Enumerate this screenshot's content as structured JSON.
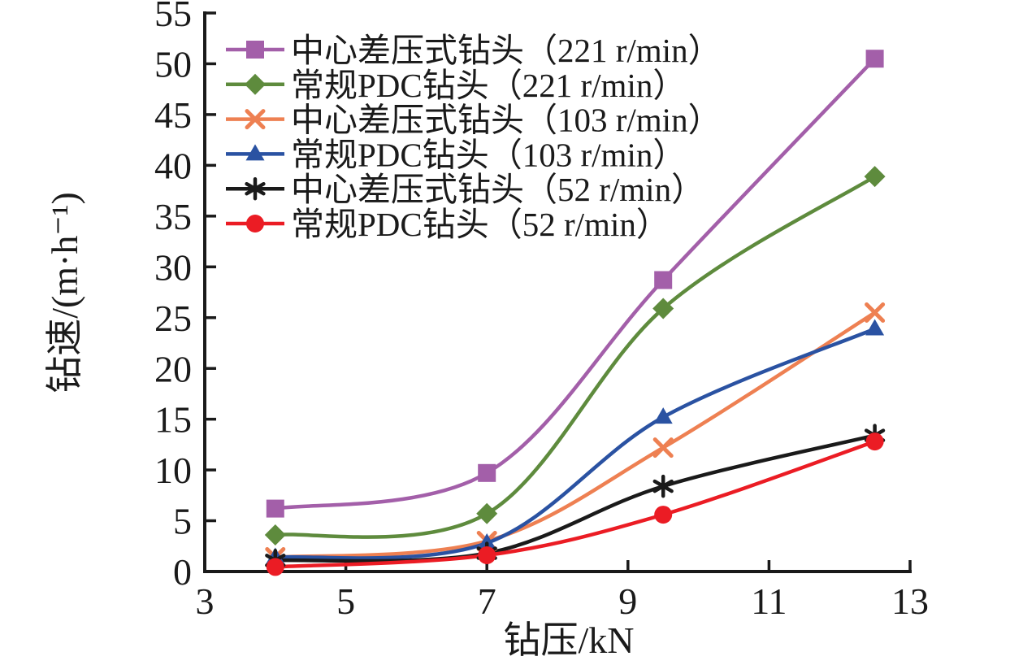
{
  "figure": {
    "background": "#ffffff",
    "text_color": "#1a1a1a"
  },
  "chart_data": {
    "type": "line",
    "xlabel": "钻压/kN",
    "ylabel": "钻速/(m·h⁻¹)",
    "xlim": [
      3,
      13
    ],
    "ylim": [
      0,
      55
    ],
    "x_ticks": [
      3,
      5,
      7,
      9,
      11,
      13
    ],
    "y_ticks": [
      0,
      5,
      10,
      15,
      20,
      25,
      30,
      35,
      40,
      45,
      50,
      55
    ],
    "grid": false,
    "legend_position": "upper-left",
    "x": [
      4,
      7,
      9.5,
      12.5
    ],
    "series": [
      {
        "name": "中心差压式钻头（221 r/min）",
        "marker": "square",
        "color": "#A35FA9",
        "values": [
          6.2,
          9.7,
          28.7,
          50.5
        ]
      },
      {
        "name": "常规PDC钻头（221 r/min）",
        "marker": "diamond",
        "color": "#5E8B3D",
        "values": [
          3.6,
          5.7,
          25.9,
          38.9
        ]
      },
      {
        "name": "中心差压式钻头（103 r/min）",
        "marker": "x",
        "color": "#EE8052",
        "values": [
          1.4,
          3.0,
          12.2,
          25.5
        ]
      },
      {
        "name": "常规PDC钻头（103 r/min）",
        "marker": "triangle",
        "color": "#2A52A2",
        "values": [
          1.4,
          2.8,
          15.2,
          23.9
        ]
      },
      {
        "name": "中心差压式钻头（52 r/min）",
        "marker": "asterisk",
        "color": "#1A1A1A",
        "values": [
          1.1,
          1.8,
          8.4,
          13.4
        ]
      },
      {
        "name": "常规PDC钻头（52 r/min）",
        "marker": "circle",
        "color": "#EB1C24",
        "values": [
          0.45,
          1.6,
          5.6,
          12.8
        ]
      }
    ]
  }
}
